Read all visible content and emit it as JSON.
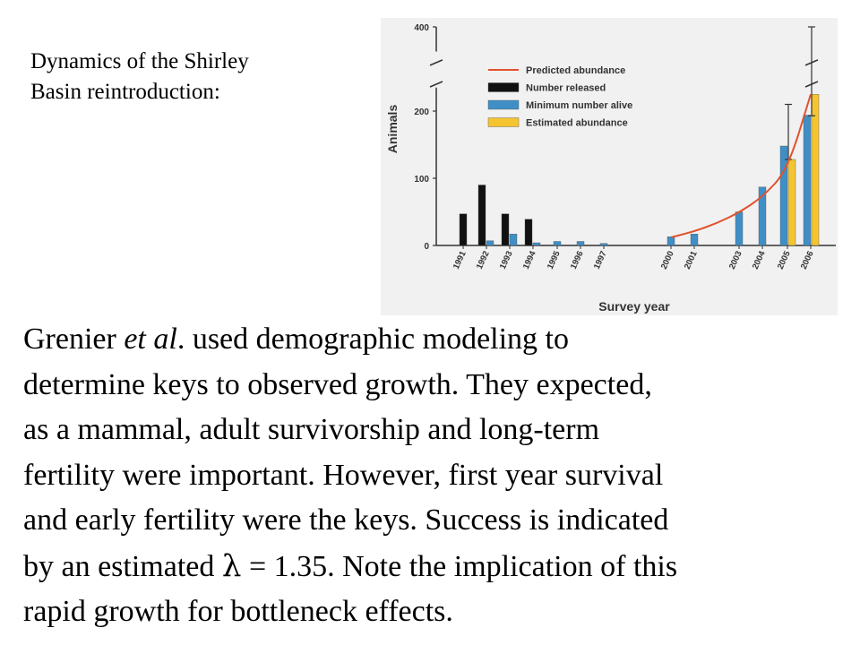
{
  "slide": {
    "title_lines": [
      "Dynamics of the Shirley",
      "Basin reintroduction:"
    ],
    "body": {
      "line1": {
        "a": "Grenier ",
        "b": "et al",
        "c": ". used demographic modeling to"
      },
      "line2": "determine keys to observed growth. They expected,",
      "line3": "as a mammal, adult survivorship and long-term",
      "line4": "fertility were important. However, first year survival",
      "line5": "and early fertility were the keys. Success is indicated",
      "line6": {
        "a": "by an estimated ",
        "sym": "λ",
        "b": " = 1.35. Note the implication of this"
      },
      "line7": "rapid growth for bottleneck effects."
    }
  },
  "chart_data": {
    "type": "bar",
    "title": "",
    "xlabel": "Survey year",
    "ylabel": "Animals",
    "yticks": [
      0,
      100,
      200,
      400
    ],
    "ylim": [
      0,
      400
    ],
    "axis_break": "between 240 and 400",
    "categories": [
      "1991",
      "1992",
      "1993",
      "1994",
      "1995",
      "1996",
      "1997",
      "2000",
      "2001",
      "2003",
      "2004",
      "2005",
      "2006"
    ],
    "series": [
      {
        "name": "Number released",
        "color": "#111111",
        "values": [
          47,
          90,
          47,
          39,
          null,
          null,
          null,
          null,
          null,
          null,
          null,
          null,
          null
        ]
      },
      {
        "name": "Minimum number alive",
        "color": "#3f8fc6",
        "values": [
          null,
          7,
          17,
          4,
          6,
          6,
          3,
          13,
          17,
          50,
          87,
          148,
          194
        ]
      },
      {
        "name": "Estimated abundance",
        "color": "#f4c531",
        "values": [
          null,
          null,
          null,
          null,
          null,
          null,
          null,
          null,
          null,
          null,
          null,
          128,
          225
        ],
        "error_bars": [
          null,
          null,
          null,
          null,
          null,
          null,
          null,
          null,
          null,
          null,
          null,
          [
            128,
            210
          ],
          [
            193,
            400
          ]
        ]
      }
    ],
    "line": {
      "name": "Predicted abundance",
      "color": "#e0522e",
      "points": [
        [
          2000,
          12
        ],
        [
          2001,
          21
        ],
        [
          2002,
          33
        ],
        [
          2003,
          49
        ],
        [
          2004,
          72
        ],
        [
          2005,
          112
        ],
        [
          2006,
          225
        ]
      ]
    },
    "legend_position": "top-right",
    "grid": false
  }
}
